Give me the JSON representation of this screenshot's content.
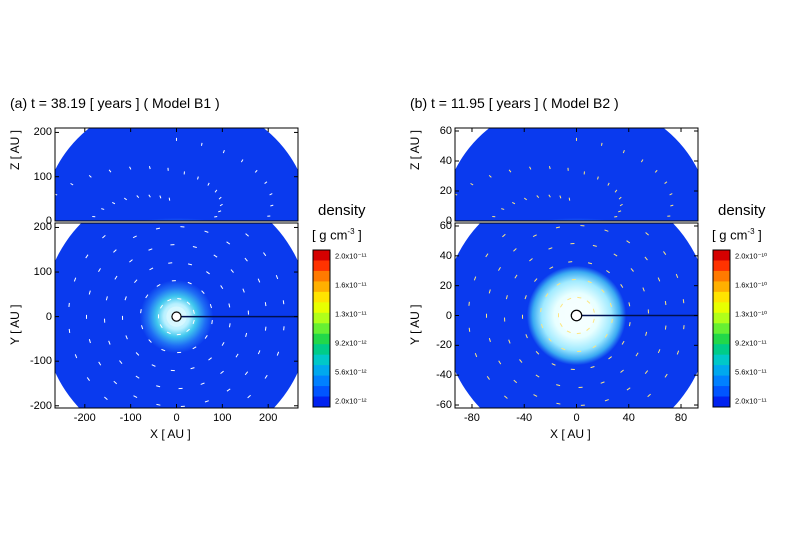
{
  "chart_data": [
    {
      "type": "heatmap",
      "panel_label": "(a)",
      "title": "(a) t = 38.19 [ years ] ( Model B1 )",
      "top_subplot": {
        "ylabel": "Z [ AU ]",
        "ylim": [
          0,
          210
        ],
        "yticks": [
          0,
          100,
          200
        ],
        "ytick_labels": [
          "0",
          "100",
          "200"
        ]
      },
      "bottom_subplot": {
        "xlabel": "X [ AU ]",
        "ylabel": "Y [ AU ]",
        "xlim": [
          -265,
          265
        ],
        "ylim": [
          -205,
          210
        ],
        "xticks": [
          -200,
          -100,
          0,
          100,
          200
        ],
        "xtick_labels": [
          "-200",
          "-100",
          "0",
          "100",
          "200"
        ],
        "yticks": [
          -200,
          -100,
          0,
          100,
          200
        ],
        "ytick_labels": [
          "-200",
          "-100",
          "0",
          "100",
          "200"
        ]
      },
      "colorbar": {
        "title": "density",
        "unit": "[ g cm",
        "unit_exp": "-3",
        "unit_close": " ]",
        "labels": [
          "2.0x10⁻¹¹",
          "1.6x10⁻¹¹",
          "1.3x10⁻¹¹",
          "9.2x10⁻¹²",
          "5.6x10⁻¹²",
          "2.0x10⁻¹²"
        ],
        "colors": [
          "#d40000",
          "#ff3300",
          "#ff7a00",
          "#ffb000",
          "#ffe400",
          "#e8ff00",
          "#b0ff1a",
          "#66f033",
          "#22d84a",
          "#00cc88",
          "#00c8c8",
          "#00a8ee",
          "#0080ff",
          "#0055ff",
          "#0022f0"
        ]
      },
      "features": {
        "disk_outer_radius_au": 80,
        "disk_bright_radius_au": 40,
        "central_hole_radius_au": 10
      }
    },
    {
      "type": "heatmap",
      "panel_label": "(b)",
      "title": "(b) t = 11.95 [ years ] ( Model B2 )",
      "top_subplot": {
        "ylabel": "Z [ AU ]",
        "ylim": [
          0,
          62
        ],
        "yticks": [
          0,
          20,
          40,
          60
        ],
        "ytick_labels": [
          "0",
          "20",
          "40",
          "60"
        ]
      },
      "bottom_subplot": {
        "xlabel": "X [ AU ]",
        "ylabel": "Y [ AU ]",
        "xlim": [
          -93,
          93
        ],
        "ylim": [
          -62,
          62
        ],
        "xticks": [
          -80,
          -40,
          0,
          40,
          80
        ],
        "xtick_labels": [
          "-80",
          "-40",
          "0",
          "40",
          "80"
        ],
        "yticks": [
          -60,
          -40,
          -20,
          0,
          20,
          40,
          60
        ],
        "ytick_labels": [
          "-60",
          "-40",
          "-20",
          "0",
          "20",
          "40",
          "60"
        ]
      },
      "colorbar": {
        "title": "density",
        "unit": "[ g cm",
        "unit_exp": "-3",
        "unit_close": " ]",
        "labels": [
          "2.0x10⁻¹⁰",
          "1.6x10⁻¹⁰",
          "1.3x10⁻¹⁰",
          "9.2x10⁻¹¹",
          "5.6x10⁻¹¹",
          "2.0x10⁻¹¹"
        ],
        "colors": [
          "#d40000",
          "#ff3300",
          "#ff7a00",
          "#ffb000",
          "#ffe400",
          "#e8ff00",
          "#b0ff1a",
          "#66f033",
          "#22d84a",
          "#00cc88",
          "#00c8c8",
          "#00a8ee",
          "#0080ff",
          "#0055ff",
          "#0022f0"
        ]
      },
      "features": {
        "disk_outer_radius_au": 38,
        "disk_bright_radius_au": 25,
        "central_hole_radius_au": 4
      }
    }
  ]
}
